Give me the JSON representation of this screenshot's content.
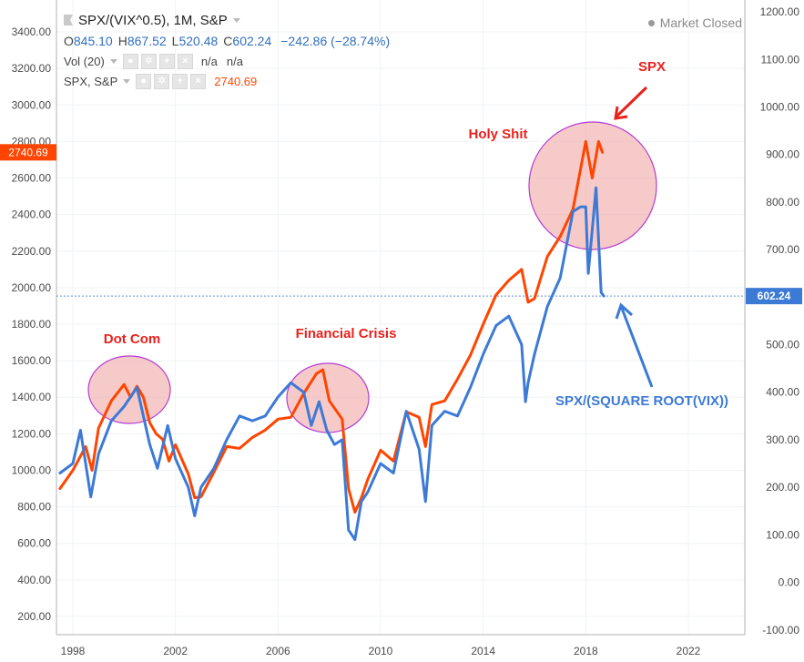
{
  "header": {
    "symbol": "SPX/(VIX^0.5), 1M, S&P",
    "ohlc": [
      {
        "label": "O",
        "value": "845.10"
      },
      {
        "label": "H",
        "value": "867.52"
      },
      {
        "label": "L",
        "value": "520.48"
      },
      {
        "label": "C",
        "value": "602.24"
      }
    ],
    "change": "−242.86 (−28.74%)",
    "market_status": "Market Closed",
    "vol_label": "Vol (20)",
    "vol_values": [
      "n/a",
      "n/a"
    ],
    "compare_label": "SPX, S&P",
    "compare_value": "2740.69",
    "colors": {
      "primary_series": "#3c7ad6",
      "compare_series": "#ff4500",
      "annotation_red": "#e8211d",
      "annotation_blue": "#3c7ad6"
    }
  },
  "chart_data": {
    "type": "line",
    "x_ticks": [
      "1998",
      "2002",
      "2006",
      "2010",
      "2014",
      "2018",
      "2022"
    ],
    "left_axis": {
      "range": [
        100,
        3500
      ],
      "ticks": [
        "200.00",
        "400.00",
        "600.00",
        "800.00",
        "1000.00",
        "1200.00",
        "1400.00",
        "1600.00",
        "1800.00",
        "2000.00",
        "2200.00",
        "2400.00",
        "2600.00",
        "2800.00",
        "3000.00",
        "3200.00",
        "3400.00"
      ],
      "marker": "2740.69"
    },
    "right_axis": {
      "range": [
        -110,
        1225
      ],
      "ticks": [
        "-100.00",
        "0.00",
        "100.00",
        "200.00",
        "300.00",
        "400.00",
        "500.00",
        "600.00",
        "700.00",
        "800.00",
        "900.00",
        "1000.00",
        "1100.00",
        "1200.00"
      ],
      "marker": "602.24"
    },
    "series": [
      {
        "name": "SPX, S&P",
        "axis": "left",
        "color": "#ff4500",
        "x": [
          1997.5,
          1998.0,
          1998.5,
          1998.75,
          1999.0,
          1999.5,
          2000.0,
          2000.25,
          2000.5,
          2000.75,
          2001.0,
          2001.25,
          2001.5,
          2001.75,
          2002.0,
          2002.5,
          2002.75,
          2003.0,
          2003.5,
          2004.0,
          2004.5,
          2005.0,
          2005.5,
          2006.0,
          2006.5,
          2007.0,
          2007.5,
          2007.75,
          2008.0,
          2008.5,
          2008.75,
          2009.0,
          2009.25,
          2009.5,
          2010.0,
          2010.5,
          2011.0,
          2011.5,
          2011.75,
          2012.0,
          2012.5,
          2013.0,
          2013.5,
          2014.0,
          2014.5,
          2015.0,
          2015.5,
          2015.75,
          2016.0,
          2016.5,
          2017.0,
          2017.5,
          2018.0,
          2018.25,
          2018.5,
          2018.65
        ],
        "values": [
          900,
          1000,
          1130,
          1000,
          1230,
          1380,
          1470,
          1400,
          1460,
          1400,
          1260,
          1200,
          1170,
          1050,
          1140,
          980,
          850,
          855,
          990,
          1130,
          1120,
          1180,
          1220,
          1280,
          1290,
          1420,
          1530,
          1550,
          1380,
          1280,
          900,
          770,
          850,
          950,
          1110,
          1050,
          1320,
          1290,
          1130,
          1360,
          1380,
          1500,
          1630,
          1800,
          1960,
          2040,
          2100,
          1920,
          1940,
          2170,
          2280,
          2430,
          2800,
          2600,
          2800,
          2740.69
        ]
      },
      {
        "name": "SPX/(VIX^0.5), 1M, S&P",
        "axis": "right",
        "color": "#3c7ad6",
        "x": [
          1997.5,
          1998.0,
          1998.3,
          1998.7,
          1999.0,
          1999.5,
          2000.0,
          2000.5,
          2001.0,
          2001.3,
          2001.7,
          2002.0,
          2002.5,
          2002.75,
          2003.0,
          2003.5,
          2004.0,
          2004.5,
          2005.0,
          2005.5,
          2006.0,
          2006.5,
          2007.0,
          2007.3,
          2007.6,
          2007.9,
          2008.2,
          2008.5,
          2008.75,
          2009.0,
          2009.25,
          2009.5,
          2010.0,
          2010.5,
          2011.0,
          2011.5,
          2011.75,
          2012.0,
          2012.5,
          2013.0,
          2013.5,
          2014.0,
          2014.5,
          2015.0,
          2015.5,
          2015.65,
          2015.75,
          2016.0,
          2016.5,
          2017.0,
          2017.5,
          2017.8,
          2018.0,
          2018.1,
          2018.4,
          2018.6,
          2018.7
        ],
        "values": [
          230,
          250,
          320,
          180,
          270,
          340,
          370,
          410,
          290,
          240,
          330,
          260,
          200,
          140,
          200,
          240,
          300,
          350,
          340,
          350,
          390,
          420,
          400,
          330,
          380,
          320,
          290,
          300,
          110,
          90,
          170,
          190,
          250,
          230,
          360,
          280,
          170,
          330,
          360,
          350,
          410,
          480,
          540,
          560,
          500,
          380,
          420,
          480,
          580,
          640,
          780,
          790,
          790,
          650,
          830,
          610,
          602.24
        ]
      }
    ],
    "annotations": [
      {
        "text": "Dot Com",
        "color": "#e8211d"
      },
      {
        "text": "Financial Crisis",
        "color": "#e8211d"
      },
      {
        "text": "Holy Shit",
        "color": "#e8211d"
      },
      {
        "text": "SPX",
        "color": "#e8211d"
      },
      {
        "text": "SPX/(SQUARE ROOT(VIX))",
        "color": "#3c7ad6"
      }
    ]
  }
}
